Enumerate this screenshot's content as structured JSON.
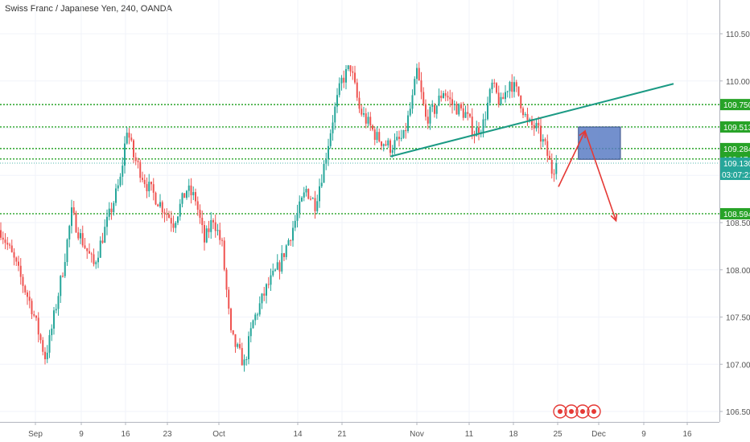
{
  "title": "Swiss Franc / Japanese Yen, 240, OANDA",
  "countdown": "03:07:21",
  "colors": {
    "up": "#26a69a",
    "down": "#ef5350",
    "level_line": "#27a327",
    "trendline": "#1b9a84",
    "box_fill": "#5b7cc4",
    "box_border": "#3a4f86",
    "arrow": "#e53935",
    "tag_green": "#27a327",
    "tag_price": "#26a69a"
  },
  "chart_data": {
    "type": "candlestick",
    "ylim": [
      106.42,
      110.7
    ],
    "y_ticks": [
      "110.500",
      "110.000",
      "109.500",
      "109.000",
      "108.500",
      "108.000",
      "107.500",
      "107.000",
      "106.500"
    ],
    "x_ticks": [
      "Sep",
      "9",
      "16",
      "23",
      "Oct",
      "14",
      "21",
      "Nov",
      "11",
      "18",
      "25",
      "Dec",
      "9",
      "16"
    ],
    "horizontal_levels": [
      {
        "price": 109.75,
        "label": "109.750"
      },
      {
        "price": 109.513,
        "label": "109.513"
      },
      {
        "price": 109.284,
        "label": "109.284"
      },
      {
        "price": 109.174,
        "label": "109.174"
      },
      {
        "price": 108.594,
        "label": "108.594"
      }
    ],
    "last_price": {
      "price": 109.13,
      "label": "109.130"
    },
    "anchors": [
      {
        "t": 0,
        "p": 108.42
      },
      {
        "t": 6,
        "p": 108.1
      },
      {
        "t": 14,
        "p": 107.6
      },
      {
        "t": 20,
        "p": 107.08
      },
      {
        "t": 22,
        "p": 107.25
      },
      {
        "t": 28,
        "p": 108.0
      },
      {
        "t": 32,
        "p": 108.6
      },
      {
        "t": 36,
        "p": 108.35
      },
      {
        "t": 42,
        "p": 108.05
      },
      {
        "t": 48,
        "p": 108.5
      },
      {
        "t": 54,
        "p": 108.95
      },
      {
        "t": 57,
        "p": 109.5
      },
      {
        "t": 60,
        "p": 109.2
      },
      {
        "t": 66,
        "p": 108.9
      },
      {
        "t": 72,
        "p": 108.7
      },
      {
        "t": 78,
        "p": 108.5
      },
      {
        "t": 84,
        "p": 108.85
      },
      {
        "t": 88,
        "p": 108.75
      },
      {
        "t": 92,
        "p": 108.3
      },
      {
        "t": 96,
        "p": 108.55
      },
      {
        "t": 100,
        "p": 108.25
      },
      {
        "t": 104,
        "p": 107.3
      },
      {
        "t": 110,
        "p": 107.0
      },
      {
        "t": 114,
        "p": 107.45
      },
      {
        "t": 120,
        "p": 107.8
      },
      {
        "t": 126,
        "p": 108.05
      },
      {
        "t": 132,
        "p": 108.45
      },
      {
        "t": 138,
        "p": 108.85
      },
      {
        "t": 142,
        "p": 108.7
      },
      {
        "t": 146,
        "p": 109.1
      },
      {
        "t": 150,
        "p": 109.6
      },
      {
        "t": 154,
        "p": 110.0
      },
      {
        "t": 158,
        "p": 110.15
      },
      {
        "t": 162,
        "p": 109.7
      },
      {
        "t": 166,
        "p": 109.55
      },
      {
        "t": 170,
        "p": 109.4
      },
      {
        "t": 176,
        "p": 109.3
      },
      {
        "t": 182,
        "p": 109.4
      },
      {
        "t": 186,
        "p": 109.8
      },
      {
        "t": 188,
        "p": 110.1
      },
      {
        "t": 192,
        "p": 109.6
      },
      {
        "t": 196,
        "p": 109.7
      },
      {
        "t": 200,
        "p": 109.9
      },
      {
        "t": 204,
        "p": 109.75
      },
      {
        "t": 210,
        "p": 109.65
      },
      {
        "t": 214,
        "p": 109.45
      },
      {
        "t": 218,
        "p": 109.55
      },
      {
        "t": 222,
        "p": 109.95
      },
      {
        "t": 226,
        "p": 109.75
      },
      {
        "t": 230,
        "p": 110.0
      },
      {
        "t": 234,
        "p": 109.85
      },
      {
        "t": 238,
        "p": 109.55
      },
      {
        "t": 242,
        "p": 109.5
      },
      {
        "t": 246,
        "p": 109.3
      },
      {
        "t": 249,
        "p": 109.05
      },
      {
        "t": 251,
        "p": 109.13
      }
    ],
    "trendline": {
      "from": {
        "t": 176,
        "p": 109.2
      },
      "to": {
        "t": 304,
        "p": 109.97
      }
    },
    "range_box": {
      "t0": 261,
      "t1": 280,
      "p_top": 109.513,
      "p_bottom": 109.17
    },
    "arrows": [
      {
        "from": {
          "t": 252,
          "p": 108.88
        },
        "to": {
          "t": 264,
          "p": 109.47
        }
      },
      {
        "from": {
          "t": 264,
          "p": 109.47
        },
        "to": {
          "t": 278,
          "p": 108.52
        }
      }
    ]
  }
}
